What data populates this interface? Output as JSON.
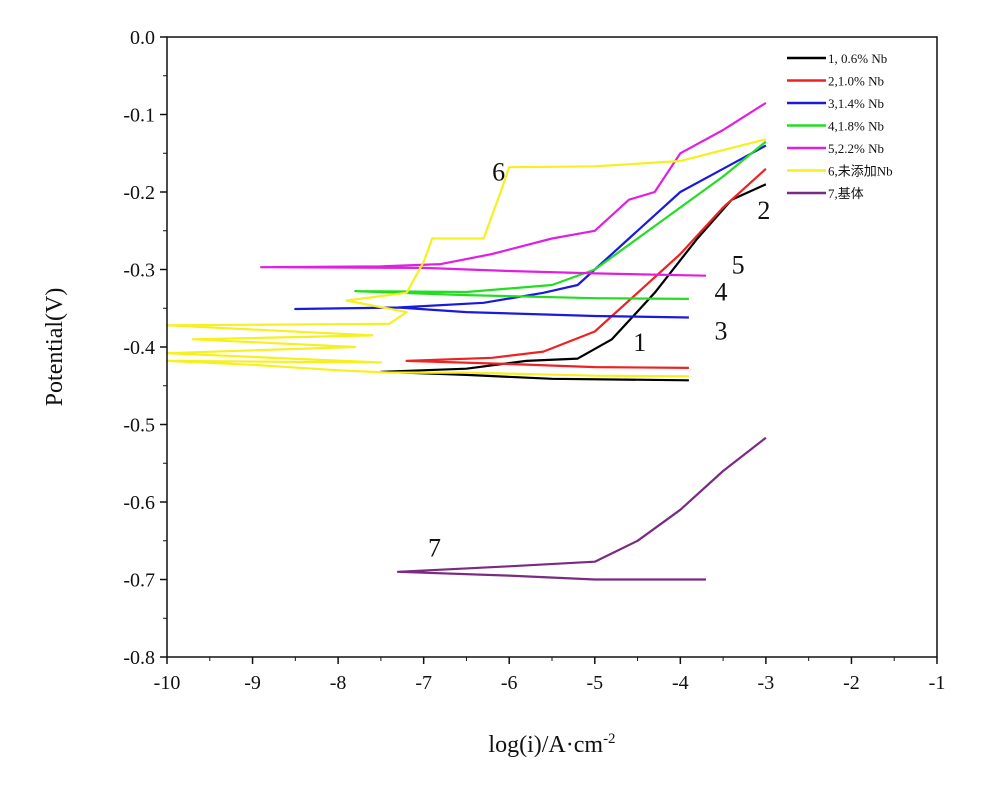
{
  "chart_data": {
    "type": "line",
    "xlabel": "log(i)/A·cm",
    "xlabel_sup": "-2",
    "ylabel": "Potential(V)",
    "xlim": [
      -10,
      -1
    ],
    "ylim": [
      -0.8,
      0.0
    ],
    "xticks": [
      -10,
      -9,
      -8,
      -7,
      -6,
      -5,
      -4,
      -3,
      -2,
      -1
    ],
    "yticks": [
      0.0,
      -0.1,
      -0.2,
      -0.3,
      -0.4,
      -0.5,
      -0.6,
      -0.7,
      -0.8
    ],
    "ytick_labels": [
      "0.0",
      "-0.1",
      "-0.2",
      "-0.3",
      "-0.4",
      "-0.5",
      "-0.6",
      "-0.7",
      "-0.8"
    ],
    "grid": false,
    "legend_position": "top-right",
    "series": [
      {
        "name": "1, 0.6% Nb",
        "color": "#000000",
        "label": "1",
        "label_at": [
          -4.55,
          -0.405
        ],
        "points": [
          [
            -3.9,
            -0.443
          ],
          [
            -5.5,
            -0.441
          ],
          [
            -6.5,
            -0.436
          ],
          [
            -7.5,
            -0.432
          ],
          [
            -6.5,
            -0.428
          ],
          [
            -5.8,
            -0.418
          ],
          [
            -5.2,
            -0.415
          ],
          [
            -4.8,
            -0.39
          ],
          [
            -4.3,
            -0.33
          ],
          [
            -3.8,
            -0.26
          ],
          [
            -3.4,
            -0.21
          ],
          [
            -3.0,
            -0.19
          ]
        ]
      },
      {
        "name": "2,1.0% Nb",
        "color": "#ee2222",
        "label": "2",
        "label_at": [
          -3.1,
          -0.235
        ],
        "points": [
          [
            -3.9,
            -0.427
          ],
          [
            -5,
            -0.426
          ],
          [
            -6,
            -0.422
          ],
          [
            -7.2,
            -0.418
          ],
          [
            -6.2,
            -0.414
          ],
          [
            -5.6,
            -0.406
          ],
          [
            -5,
            -0.38
          ],
          [
            -4.5,
            -0.33
          ],
          [
            -4,
            -0.28
          ],
          [
            -3.5,
            -0.22
          ],
          [
            -3,
            -0.17
          ]
        ]
      },
      {
        "name": "3,1.4% Nb",
        "color": "#1a1adb",
        "label": "3",
        "label_at": [
          -3.6,
          -0.39
        ],
        "points": [
          [
            -3.9,
            -0.362
          ],
          [
            -5,
            -0.36
          ],
          [
            -6.5,
            -0.355
          ],
          [
            -7.3,
            -0.349
          ],
          [
            -8.5,
            -0.351
          ],
          [
            -7.3,
            -0.349
          ],
          [
            -6.3,
            -0.343
          ],
          [
            -5.6,
            -0.33
          ],
          [
            -5.2,
            -0.32
          ],
          [
            -4.6,
            -0.26
          ],
          [
            -4,
            -0.2
          ],
          [
            -3.5,
            -0.17
          ],
          [
            -3,
            -0.14
          ]
        ]
      },
      {
        "name": "4,1.8% Nb",
        "color": "#22dd22",
        "label": "4",
        "label_at": [
          -3.6,
          -0.34
        ],
        "points": [
          [
            -3.9,
            -0.338
          ],
          [
            -5,
            -0.337
          ],
          [
            -6.5,
            -0.333
          ],
          [
            -7.8,
            -0.328
          ],
          [
            -6.5,
            -0.329
          ],
          [
            -5.5,
            -0.32
          ],
          [
            -5,
            -0.3
          ],
          [
            -4.5,
            -0.26
          ],
          [
            -4,
            -0.22
          ],
          [
            -3.5,
            -0.18
          ],
          [
            -3,
            -0.135
          ]
        ]
      },
      {
        "name": "5,2.2% Nb",
        "color": "#e020e0",
        "label": "5",
        "label_at": [
          -3.4,
          -0.305
        ],
        "points": [
          [
            -3.7,
            -0.308
          ],
          [
            -5,
            -0.305
          ],
          [
            -6,
            -0.302
          ],
          [
            -7,
            -0.298
          ],
          [
            -8.9,
            -0.297
          ],
          [
            -7.5,
            -0.296
          ],
          [
            -6.8,
            -0.293
          ],
          [
            -6.2,
            -0.28
          ],
          [
            -5.5,
            -0.26
          ],
          [
            -5,
            -0.25
          ],
          [
            -4.6,
            -0.21
          ],
          [
            -4.3,
            -0.2
          ],
          [
            -4,
            -0.15
          ],
          [
            -3.5,
            -0.12
          ],
          [
            -3,
            -0.085
          ]
        ]
      },
      {
        "name": "6,未添加Nb",
        "color": "#f5f020",
        "label": "6",
        "label_at": [
          -6.2,
          -0.185
        ],
        "points": [
          [
            -3.9,
            -0.438
          ],
          [
            -5,
            -0.437
          ],
          [
            -6.5,
            -0.433
          ],
          [
            -7.4,
            -0.433
          ],
          [
            -8,
            -0.43
          ],
          [
            -9,
            -0.423
          ],
          [
            -10,
            -0.418
          ],
          [
            -7.5,
            -0.42
          ],
          [
            -10,
            -0.408
          ],
          [
            -7.8,
            -0.4
          ],
          [
            -9.7,
            -0.39
          ],
          [
            -7.6,
            -0.385
          ],
          [
            -10,
            -0.372
          ],
          [
            -7.4,
            -0.37
          ],
          [
            -7.2,
            -0.355
          ],
          [
            -7.9,
            -0.34
          ],
          [
            -7.2,
            -0.33
          ],
          [
            -7,
            -0.29
          ],
          [
            -6.9,
            -0.26
          ],
          [
            -6.3,
            -0.26
          ],
          [
            -6.1,
            -0.2
          ],
          [
            -6,
            -0.168
          ],
          [
            -5,
            -0.167
          ],
          [
            -4,
            -0.16
          ],
          [
            -3,
            -0.132
          ]
        ]
      },
      {
        "name": "7,基体",
        "color": "#7a2a82",
        "label": "7",
        "label_at": [
          -6.95,
          -0.67
        ],
        "points": [
          [
            -3.7,
            -0.7
          ],
          [
            -5,
            -0.7
          ],
          [
            -6,
            -0.695
          ],
          [
            -7.3,
            -0.69
          ],
          [
            -6,
            -0.683
          ],
          [
            -5,
            -0.677
          ],
          [
            -4.5,
            -0.65
          ],
          [
            -4,
            -0.61
          ],
          [
            -3.5,
            -0.56
          ],
          [
            -3,
            -0.517
          ]
        ]
      }
    ]
  }
}
